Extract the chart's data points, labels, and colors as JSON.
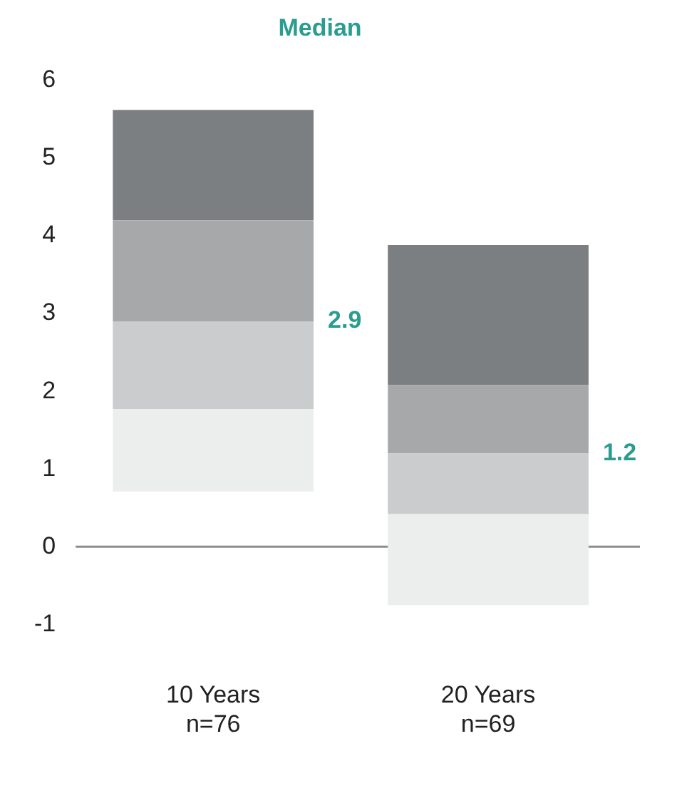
{
  "chart_data": {
    "type": "bar",
    "title": "Median",
    "categories": [
      "10 Years\nn=76",
      "20 Years\nn=69"
    ],
    "series": [
      {
        "color": "#eceded",
        "base": [
          0.71,
          -0.75
        ],
        "values": [
          1.06,
          1.17
        ]
      },
      {
        "color": "#cbcccd",
        "base": [
          1.77,
          0.42
        ],
        "values": [
          1.13,
          0.78
        ]
      },
      {
        "color": "#a7a8aa",
        "base": [
          2.9,
          1.2
        ],
        "values": [
          1.3,
          0.88
        ]
      },
      {
        "color": "#7c7f82",
        "base": [
          4.2,
          2.08
        ],
        "values": [
          1.42,
          1.8
        ]
      }
    ],
    "ylim": [
      -1,
      6
    ],
    "yticks": [
      -1,
      0,
      1,
      2,
      3,
      4,
      5,
      6
    ],
    "grid": false,
    "legend": false,
    "ref_lines": [
      {
        "axis": "y",
        "value": 0,
        "color": "#8a8c8e"
      }
    ],
    "annotations": [
      "2.9",
      "1.2"
    ]
  }
}
